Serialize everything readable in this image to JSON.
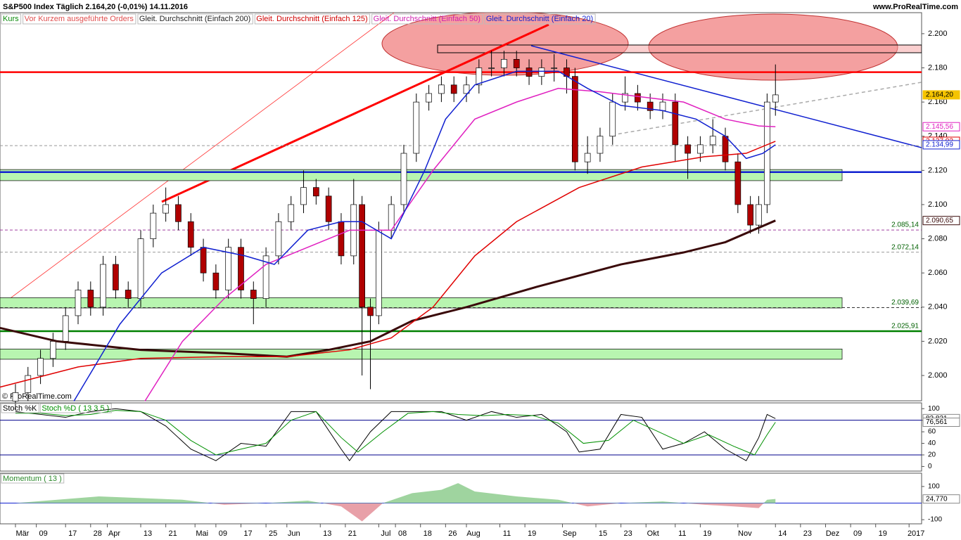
{
  "header": {
    "title": "S&P500 Index   Täglich   2.164,20 (-0,01%)   14.11.2016",
    "site": "www.ProRealTime.com",
    "copyright": "© ProRealTime.com",
    "legend": [
      "Kurs",
      "Vor Kurzem ausgeführte Orders",
      "Gleit. Durchschnitt (Einfach 200)",
      "Gleit. Durchschnitt (Einfach 125)",
      "Gleit. Durchschnitt (Einfach 50)",
      "Gleit. Durchschnitt (Einfach 20)"
    ]
  },
  "chart_data": [
    {
      "type": "candlestick",
      "up_color": "#ffffff",
      "down_color": "#b00000",
      "xlim": [
        -3.7,
        217
      ],
      "xticks": [
        {
          "value": 0,
          "label": "Mär"
        },
        {
          "value": 5,
          "label": "09"
        },
        {
          "value": 12,
          "label": "17"
        },
        {
          "value": 18,
          "label": "28"
        },
        {
          "value": 22,
          "label": "Apr"
        },
        {
          "value": 30,
          "label": "13"
        },
        {
          "value": 36,
          "label": "21"
        },
        {
          "value": 43,
          "label": "Mai"
        },
        {
          "value": 48,
          "label": "09"
        },
        {
          "value": 54,
          "label": "17"
        },
        {
          "value": 60,
          "label": "25"
        },
        {
          "value": 65,
          "label": "Jun"
        },
        {
          "value": 73,
          "label": "13"
        },
        {
          "value": 79,
          "label": "21"
        },
        {
          "value": 87,
          "label": "Jul"
        },
        {
          "value": 91,
          "label": "08"
        },
        {
          "value": 97,
          "label": "18"
        },
        {
          "value": 103,
          "label": "26"
        },
        {
          "value": 108,
          "label": "Aug"
        },
        {
          "value": 116,
          "label": "11"
        },
        {
          "value": 122,
          "label": "19"
        },
        {
          "value": 131,
          "label": "Sep"
        },
        {
          "value": 139,
          "label": "15"
        },
        {
          "value": 145,
          "label": "23"
        },
        {
          "value": 151,
          "label": "Okt"
        },
        {
          "value": 158,
          "label": "11"
        },
        {
          "value": 164,
          "label": "19"
        },
        {
          "value": 173,
          "label": "Nov"
        },
        {
          "value": 182,
          "label": "14"
        },
        {
          "value": 188,
          "label": "23"
        },
        {
          "value": 194,
          "label": "Dez"
        },
        {
          "value": 200,
          "label": "09"
        },
        {
          "value": 206,
          "label": "19"
        },
        {
          "value": 214,
          "label": "2017"
        }
      ],
      "ylim": [
        1.9852,
        2.2123
      ],
      "yticks": [
        {
          "value": 2.0,
          "label": "2.000"
        },
        {
          "value": 2.02,
          "label": "2.020"
        },
        {
          "value": 2.04,
          "label": "2.040"
        },
        {
          "value": 2.06,
          "label": "2.060"
        },
        {
          "value": 2.08,
          "label": "2.080"
        },
        {
          "value": 2.1,
          "label": "2.100"
        },
        {
          "value": 2.12,
          "label": "2.120"
        },
        {
          "value": 2.14,
          "label": "2.140"
        },
        {
          "value": 2.16,
          "label": "2.160"
        },
        {
          "value": 2.18,
          "label": "2.180"
        },
        {
          "value": 2.2,
          "label": "2.200"
        }
      ],
      "x": [
        0,
        3,
        6,
        9,
        12,
        15,
        18,
        21,
        24,
        27,
        30,
        33,
        36,
        39,
        42,
        45,
        48,
        51,
        54,
        57,
        60,
        63,
        66,
        69,
        72,
        75,
        78,
        81,
        83,
        85,
        87,
        90,
        93,
        96,
        99,
        102,
        105,
        108,
        111,
        114,
        117,
        120,
        123,
        126,
        129,
        132,
        134,
        137,
        140,
        143,
        146,
        149,
        152,
        155,
        158,
        161,
        164,
        167,
        170,
        173,
        176,
        178,
        180,
        182
      ],
      "open": [
        1.985,
        1.99,
        2.0,
        2.01,
        2.02,
        2.035,
        2.05,
        2.04,
        2.065,
        2.05,
        2.045,
        2.08,
        2.095,
        2.1,
        2.09,
        2.075,
        2.06,
        2.05,
        2.075,
        2.05,
        2.045,
        2.07,
        2.09,
        2.1,
        2.11,
        2.105,
        2.09,
        2.07,
        2.1,
        2.04,
        2.035,
        2.085,
        2.1,
        2.13,
        2.16,
        2.165,
        2.17,
        2.165,
        2.17,
        2.18,
        2.18,
        2.185,
        2.18,
        2.175,
        2.18,
        2.18,
        2.175,
        2.125,
        2.13,
        2.14,
        2.16,
        2.165,
        2.16,
        2.155,
        2.16,
        2.135,
        2.13,
        2.135,
        2.14,
        2.125,
        2.1,
        2.088,
        2.1,
        2.16
      ],
      "high": [
        1.995,
        2.005,
        2.015,
        2.025,
        2.04,
        2.055,
        2.055,
        2.07,
        2.07,
        2.055,
        2.085,
        2.1,
        2.11,
        2.105,
        2.095,
        2.08,
        2.065,
        2.08,
        2.08,
        2.055,
        2.075,
        2.095,
        2.105,
        2.12,
        2.115,
        2.11,
        2.095,
        2.115,
        2.105,
        2.045,
        2.09,
        2.105,
        2.135,
        2.165,
        2.17,
        2.175,
        2.175,
        2.175,
        2.185,
        2.19,
        2.19,
        2.19,
        2.185,
        2.185,
        2.188,
        2.185,
        2.18,
        2.14,
        2.145,
        2.165,
        2.175,
        2.17,
        2.165,
        2.165,
        2.165,
        2.14,
        2.14,
        2.15,
        2.145,
        2.13,
        2.105,
        2.105,
        2.165,
        2.182
      ],
      "low": [
        1.98,
        1.985,
        1.995,
        2.005,
        2.015,
        2.03,
        2.035,
        2.035,
        2.045,
        2.04,
        2.04,
        2.075,
        2.09,
        2.085,
        2.07,
        2.055,
        2.045,
        2.045,
        2.045,
        2.03,
        2.04,
        2.065,
        2.085,
        2.095,
        2.1,
        2.085,
        2.065,
        2.065,
        2.0,
        1.992,
        2.03,
        2.08,
        2.095,
        2.125,
        2.155,
        2.16,
        2.16,
        2.16,
        2.165,
        2.175,
        2.175,
        2.175,
        2.17,
        2.17,
        2.172,
        2.165,
        2.12,
        2.118,
        2.125,
        2.135,
        2.155,
        2.155,
        2.15,
        2.15,
        2.125,
        2.115,
        2.125,
        2.13,
        2.12,
        2.095,
        2.083,
        2.083,
        2.095,
        2.152
      ],
      "close": [
        1.99,
        2.0,
        2.01,
        2.02,
        2.035,
        2.05,
        2.04,
        2.065,
        2.05,
        2.045,
        2.08,
        2.095,
        2.1,
        2.09,
        2.075,
        2.06,
        2.05,
        2.075,
        2.05,
        2.045,
        2.07,
        2.09,
        2.1,
        2.11,
        2.105,
        2.09,
        2.07,
        2.1,
        2.04,
        2.035,
        2.085,
        2.1,
        2.13,
        2.16,
        2.165,
        2.17,
        2.165,
        2.17,
        2.18,
        2.18,
        2.185,
        2.18,
        2.175,
        2.18,
        2.18,
        2.175,
        2.125,
        2.13,
        2.14,
        2.16,
        2.165,
        2.16,
        2.155,
        2.16,
        2.135,
        2.13,
        2.135,
        2.14,
        2.125,
        2.1,
        2.088,
        2.1,
        2.16,
        2.1642
      ],
      "series": [
        {
          "color": "#3a0a0a",
          "width": 3,
          "x": [
            -4,
            10,
            30,
            50,
            65,
            75,
            85,
            95,
            108,
            125,
            145,
            160,
            170,
            182
          ],
          "values": [
            2.028,
            2.02,
            2.015,
            2.013,
            2.011,
            2.015,
            2.02,
            2.032,
            2.04,
            2.052,
            2.065,
            2.072,
            2.078,
            2.09065
          ]
        },
        {
          "color": "#e00000",
          "width": 1.5,
          "x": [
            -4,
            15,
            30,
            50,
            65,
            80,
            90,
            100,
            110,
            120,
            135,
            150,
            165,
            175,
            182
          ],
          "values": [
            1.993,
            2.005,
            2.01,
            2.011,
            2.011,
            2.015,
            2.022,
            2.04,
            2.07,
            2.09,
            2.11,
            2.122,
            2.128,
            2.13,
            2.13702
          ]
        },
        {
          "color": "#e020c0",
          "width": 1.5,
          "x": [
            31,
            40,
            50,
            60,
            70,
            80,
            90,
            100,
            110,
            120,
            130,
            140,
            150,
            160,
            170,
            178,
            182
          ],
          "values": [
            1.985,
            2.02,
            2.045,
            2.065,
            2.075,
            2.085,
            2.085,
            2.12,
            2.15,
            2.16,
            2.168,
            2.166,
            2.163,
            2.16,
            2.15,
            2.146,
            2.14556
          ]
        },
        {
          "color": "#1020d0",
          "width": 1.5,
          "x": [
            14,
            25,
            35,
            45,
            55,
            62,
            70,
            78,
            83,
            90,
            98,
            103,
            110,
            120,
            130,
            137,
            145,
            155,
            163,
            170,
            175,
            179,
            182
          ],
          "values": [
            1.985,
            2.03,
            2.06,
            2.075,
            2.07,
            2.065,
            2.085,
            2.09,
            2.09,
            2.08,
            2.12,
            2.15,
            2.17,
            2.178,
            2.178,
            2.168,
            2.158,
            2.155,
            2.15,
            2.14,
            2.127,
            2.13,
            2.13499
          ]
        }
      ],
      "zones": [
        {
          "low": 2.114,
          "high": 2.1205,
          "color": "#b8f5b0"
        },
        {
          "low": 2.0395,
          "high": 2.0455,
          "color": "#b8f5b0"
        },
        {
          "low": 2.0095,
          "high": 2.0155,
          "color": "#b8f5b0"
        }
      ],
      "levels": [
        {
          "value": 2.1775,
          "color": "#ff0000",
          "width": 2.5
        },
        {
          "value": 2.119,
          "color": "#1020d0",
          "width": 2.5
        },
        {
          "value": 2.02591,
          "color": "#008000",
          "width": 2.5,
          "label": "2.025,91"
        },
        {
          "value": 2.1345,
          "color": "#999999",
          "width": 1,
          "dash": true
        },
        {
          "value": 2.08514,
          "color": "#a040a0",
          "width": 1,
          "dash": true,
          "label": "2.085,14"
        },
        {
          "value": 2.07214,
          "color": "#999999",
          "width": 1,
          "dash": true,
          "label": "2.072,14"
        },
        {
          "value": 2.03969,
          "color": "#333333",
          "width": 1,
          "dash": true,
          "label": "2.039,69"
        }
      ],
      "price_labels": [
        {
          "value": 2.1642,
          "label": "2.164,20",
          "color": "#f5c400"
        },
        {
          "value": 2.14556,
          "label": "2.145,56",
          "color": "#e020c0"
        },
        {
          "value": 2.13702,
          "label": "2.137,02",
          "color": "#e00000"
        },
        {
          "value": 2.13499,
          "label": "2.134,99",
          "color": "#1020d0"
        },
        {
          "value": 2.09065,
          "label": "2.090,65",
          "color": "#3a0a0a"
        }
      ]
    },
    {
      "type": "line",
      "ylim": [
        -8,
        110
      ],
      "yticks": [
        0,
        20,
        40,
        60,
        80,
        100
      ],
      "levels": [
        {
          "value": 80,
          "color": "#00008b",
          "width": 1
        },
        {
          "value": 20,
          "color": "#00008b",
          "width": 1
        }
      ],
      "series": [
        {
          "name": "Stoch %K",
          "color": "#000000",
          "x": [
            0,
            6,
            12,
            18,
            24,
            30,
            36,
            42,
            48,
            54,
            60,
            66,
            72,
            78,
            80,
            85,
            90,
            96,
            102,
            108,
            114,
            120,
            126,
            132,
            135,
            140,
            145,
            150,
            155,
            160,
            165,
            170,
            175,
            178,
            180,
            182
          ],
          "values": [
            95,
            90,
            85,
            95,
            100,
            95,
            70,
            30,
            10,
            40,
            35,
            95,
            95,
            30,
            10,
            60,
            95,
            95,
            95,
            80,
            95,
            85,
            90,
            60,
            25,
            30,
            90,
            85,
            30,
            40,
            60,
            30,
            10,
            50,
            90,
            82.821
          ]
        },
        {
          "name": "Stoch %D ( 13 3 5 )",
          "color": "#009000",
          "x": [
            0,
            6,
            12,
            18,
            24,
            30,
            36,
            42,
            48,
            54,
            60,
            66,
            72,
            78,
            82,
            88,
            94,
            100,
            106,
            112,
            118,
            124,
            130,
            136,
            142,
            148,
            154,
            160,
            166,
            172,
            177,
            180,
            182
          ],
          "values": [
            92,
            92,
            88,
            90,
            97,
            95,
            80,
            45,
            20,
            30,
            40,
            80,
            95,
            50,
            25,
            60,
            92,
            95,
            90,
            88,
            90,
            88,
            75,
            40,
            45,
            80,
            60,
            40,
            55,
            35,
            20,
            55,
            76.561
          ]
        }
      ],
      "price_labels": [
        {
          "value": 82.821,
          "label": "82,821",
          "color": "#ffffff"
        },
        {
          "value": 76.561,
          "label": "76,561",
          "color": "#ffffff"
        }
      ]
    },
    {
      "type": "area",
      "ylim": [
        -125,
        180
      ],
      "yticks": [
        -100,
        100
      ],
      "levels": [
        {
          "value": 0,
          "color": "#1020d0",
          "width": 1
        }
      ],
      "series": [
        {
          "name": "Momentum ( 13 )",
          "color": "#2e8b2e",
          "x": [
            0,
            10,
            20,
            30,
            40,
            50,
            60,
            70,
            78,
            83,
            88,
            95,
            102,
            106,
            110,
            120,
            130,
            137,
            145,
            155,
            165,
            172,
            178,
            180,
            182
          ],
          "values": [
            0,
            20,
            40,
            30,
            20,
            -10,
            0,
            15,
            -20,
            -110,
            0,
            60,
            80,
            120,
            70,
            40,
            20,
            -20,
            0,
            10,
            -10,
            -20,
            -30,
            20,
            24.77
          ]
        }
      ],
      "price_labels": [
        {
          "value": 24.77,
          "label": "24,770",
          "color": "#ffffff"
        }
      ]
    }
  ]
}
